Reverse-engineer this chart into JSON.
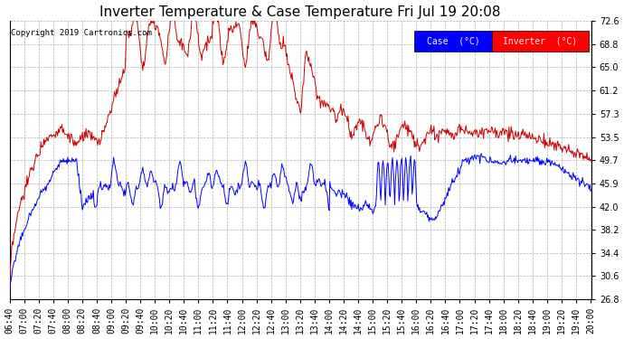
{
  "title": "Inverter Temperature & Case Temperature Fri Jul 19 20:08",
  "copyright": "Copyright 2019 Cartronics.com",
  "legend_case_label": "Case  (°C)",
  "legend_inv_label": "Inverter  (°C)",
  "case_color": "#0000ff",
  "inverter_color": "#cc0000",
  "ylim": [
    26.8,
    72.6
  ],
  "yticks": [
    26.8,
    30.6,
    34.4,
    38.2,
    42.0,
    45.9,
    49.7,
    53.5,
    57.3,
    61.2,
    65.0,
    68.8,
    72.6
  ],
  "background_color": "#ffffff",
  "plot_bg_color": "#ffffff",
  "grid_color": "#b0b0b0",
  "title_fontsize": 11,
  "tick_fontsize": 7,
  "figwidth": 6.9,
  "figheight": 3.75,
  "dpi": 100
}
